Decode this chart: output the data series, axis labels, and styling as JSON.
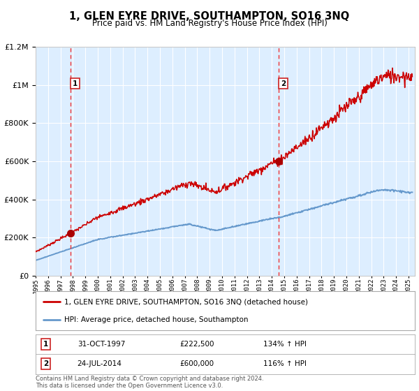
{
  "title": "1, GLEN EYRE DRIVE, SOUTHAMPTON, SO16 3NQ",
  "subtitle": "Price paid vs. HM Land Registry's House Price Index (HPI)",
  "legend_property": "1, GLEN EYRE DRIVE, SOUTHAMPTON, SO16 3NQ (detached house)",
  "legend_hpi": "HPI: Average price, detached house, Southampton",
  "annotation1": [
    "1",
    "31-OCT-1997",
    "£222,500",
    "134% ↑ HPI"
  ],
  "annotation2": [
    "2",
    "24-JUL-2014",
    "£600,000",
    "116% ↑ HPI"
  ],
  "footer": "Contains HM Land Registry data © Crown copyright and database right 2024.\nThis data is licensed under the Open Government Licence v3.0.",
  "sale1_date": 1997.83,
  "sale1_price": 222500,
  "sale2_date": 2014.55,
  "sale2_price": 600000,
  "property_color": "#cc0000",
  "hpi_color": "#6699cc",
  "vline_color": "#ee3333",
  "marker_color": "#aa0000",
  "bg_color": "#ddeeff",
  "ylim_max": 1200000,
  "xlim_start": 1995.0,
  "xlim_end": 2025.5
}
